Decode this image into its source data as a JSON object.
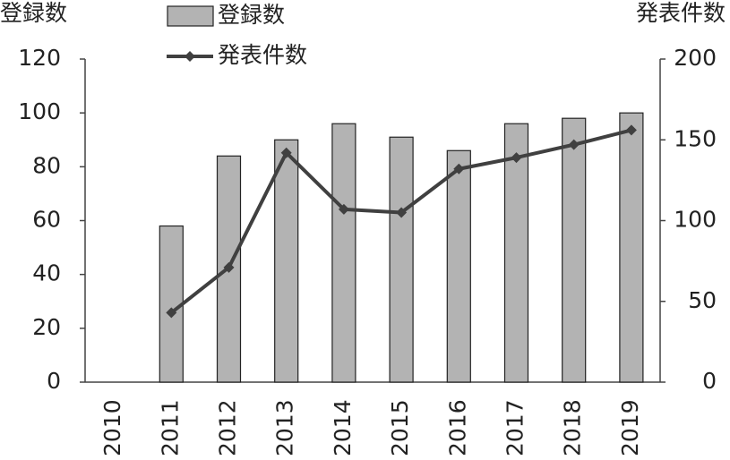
{
  "chart_data": {
    "type": "bar_line",
    "y_title": "登録数",
    "y2_title": "発表件数",
    "categories": [
      "2010",
      "2011",
      "2012",
      "2013",
      "2014",
      "2015",
      "2016",
      "2017",
      "2018",
      "2019"
    ],
    "series": [
      {
        "name": "登録数",
        "type": "bar",
        "color": "#b3b3b3",
        "values": [
          null,
          58,
          84,
          90,
          96,
          91,
          86,
          96,
          98,
          100
        ]
      },
      {
        "name": "発表件数",
        "type": "line",
        "axis": "y2",
        "color": "#404040",
        "values": [
          null,
          43,
          71,
          142,
          107,
          105,
          132,
          139,
          147,
          156
        ]
      }
    ],
    "ylim": [
      0,
      120
    ],
    "yticks": [
      0,
      20,
      40,
      60,
      80,
      100,
      120
    ],
    "y2lim": [
      0,
      200
    ],
    "y2ticks": [
      0,
      50,
      100,
      150,
      200
    ]
  }
}
